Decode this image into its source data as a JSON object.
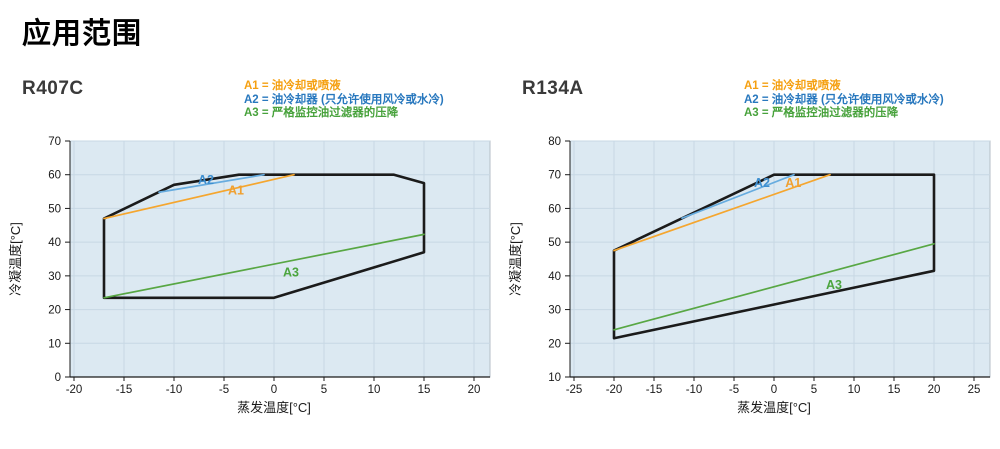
{
  "page": {
    "title": "应用范围"
  },
  "chart_data": [
    {
      "type": "line",
      "title": "R407C",
      "xlabel": "蒸发温度[°C]",
      "ylabel": "冷凝温度[°C]",
      "xlim": [
        -20,
        20
      ],
      "xtick_step": 5,
      "ylim": [
        0,
        70
      ],
      "ytick_step": 10,
      "grid": true,
      "plot_background": "#DCE9F2",
      "gridline_color": "#C7D8E4",
      "envelope": {
        "name": "operating-envelope",
        "color": "#1B1B1B",
        "closed": true,
        "points": [
          [
            -17,
            23.5
          ],
          [
            -17,
            47
          ],
          [
            -10,
            57
          ],
          [
            -3.5,
            60
          ],
          [
            12,
            60
          ],
          [
            15,
            57.5
          ],
          [
            15,
            37
          ],
          [
            0,
            23.5
          ]
        ]
      },
      "series": [
        {
          "name": "A1",
          "legend_text": "油冷却或喷液",
          "line_color": "#F5A62F",
          "legend_color": "#F5A011",
          "label_color": "#F0A030",
          "points": [
            [
              -17,
              47
            ],
            [
              2,
              60
            ]
          ],
          "label_pos": [
            -3.8,
            55.4
          ]
        },
        {
          "name": "A2",
          "legend_text": "油冷却器 (只允许使用风冷或水冷)",
          "line_color": "#67ACDF",
          "legend_color": "#2878BE",
          "label_color": "#3E8FD0",
          "points": [
            [
              -11.5,
              54.8
            ],
            [
              -1,
              60
            ]
          ],
          "label_pos": [
            -6.8,
            58.6
          ]
        },
        {
          "name": "A3",
          "legend_text": "严格监控油过滤器的压降",
          "line_color": "#58A744",
          "legend_color": "#48A23C",
          "label_color": "#4BA53E",
          "points": [
            [
              -17,
              23.5
            ],
            [
              15,
              42.3
            ]
          ],
          "label_pos": [
            1.7,
            31.2
          ]
        }
      ]
    },
    {
      "type": "line",
      "title": "R134A",
      "xlabel": "蒸发温度[°C]",
      "ylabel": "冷凝温度[°C]",
      "xlim": [
        -25,
        25
      ],
      "xtick_step": 5,
      "ylim": [
        10,
        80
      ],
      "ytick_step": 10,
      "grid": true,
      "plot_background": "#DCE9F2",
      "gridline_color": "#C7D8E4",
      "envelope": {
        "name": "operating-envelope",
        "color": "#1B1B1B",
        "closed": true,
        "points": [
          [
            -20,
            21.5
          ],
          [
            -20,
            47.5
          ],
          [
            0,
            70
          ],
          [
            20,
            70
          ],
          [
            20,
            41.5
          ]
        ]
      },
      "series": [
        {
          "name": "A1",
          "legend_text": "油冷却或喷液",
          "line_color": "#F5A62F",
          "legend_color": "#F5A011",
          "label_color": "#F0A030",
          "points": [
            [
              -20,
              47.5
            ],
            [
              7,
              70
            ]
          ],
          "label_pos": [
            2.4,
            67.7
          ]
        },
        {
          "name": "A2",
          "legend_text": "油冷却器 (只允许使用风冷或水冷)",
          "line_color": "#67ACDF",
          "legend_color": "#2878BE",
          "label_color": "#3E8FD0",
          "points": [
            [
              -11.5,
              57.1
            ],
            [
              2.5,
              70
            ]
          ],
          "label_pos": [
            -1.5,
            67.7
          ]
        },
        {
          "name": "A3",
          "legend_text": "严格监控油过滤器的压降",
          "line_color": "#58A744",
          "legend_color": "#48A23C",
          "label_color": "#4BA53E",
          "points": [
            [
              -20,
              24
            ],
            [
              20,
              49.5
            ]
          ],
          "label_pos": [
            7.5,
            37.5
          ]
        }
      ]
    }
  ]
}
